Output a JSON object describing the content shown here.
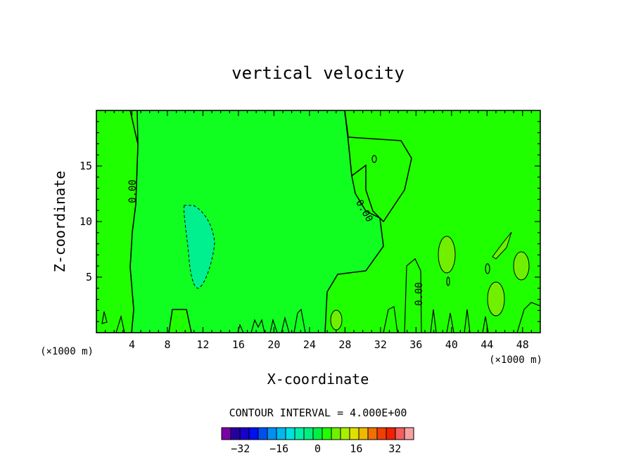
{
  "chart_data": {
    "type": "heatmap",
    "title": "vertical velocity",
    "xlabel": "X-coordinate",
    "ylabel": "Z-coordinate",
    "x_unit": "(×1000 m)",
    "x_unit_right": "(×1000 m)",
    "xlim": [
      0,
      50
    ],
    "ylim": [
      0,
      20
    ],
    "x_ticks": [
      4,
      8,
      12,
      16,
      20,
      24,
      28,
      32,
      36,
      40,
      44,
      48
    ],
    "y_ticks": [
      5,
      10,
      15
    ],
    "contour_interval_text": "CONTOUR INTERVAL = 4.000E+00",
    "contour_labels": [
      "0.00",
      "0.00",
      "0.00"
    ],
    "background_value": 0,
    "colorbar": {
      "levels": [
        -36,
        -32,
        -28,
        -24,
        -20,
        -16,
        -12,
        -8,
        -4,
        0,
        4,
        8,
        12,
        16,
        20,
        24,
        28,
        32,
        36
      ],
      "colors": [
        "#7b00a8",
        "#2400a0",
        "#1800c8",
        "#0010f0",
        "#0050f0",
        "#0090f0",
        "#00b8f0",
        "#00e0e0",
        "#00f0a8",
        "#00f080",
        "#00f040",
        "#20ff00",
        "#70f000",
        "#a8f000",
        "#e0e000",
        "#f0b800",
        "#f07000",
        "#f04000",
        "#f02000",
        "#f06060",
        "#f8a0a0"
      ],
      "tick_labels": [
        "-32",
        "-16",
        "0",
        "16",
        "32"
      ],
      "tick_values": [
        -32,
        -16,
        0,
        16,
        32
      ]
    }
  }
}
